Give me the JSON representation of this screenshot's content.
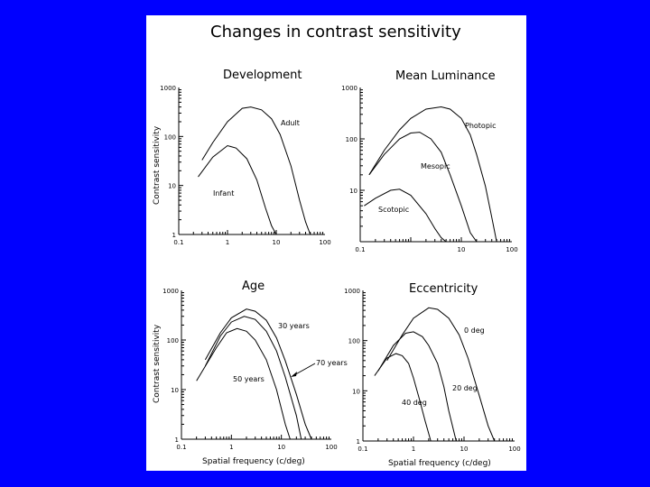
{
  "title": "Changes in contrast sensitivity",
  "chart_data": [
    {
      "type": "line",
      "title": "Development",
      "xscale": "log",
      "yscale": "log",
      "xlim": [
        0.1,
        100
      ],
      "ylim": [
        1,
        1000
      ],
      "xticklabels": [
        "0.1",
        "1",
        "10",
        "100"
      ],
      "yticklabels": [
        "1000",
        "100",
        "10",
        "1"
      ],
      "xlabel": "",
      "ylabel": "Contrast sensitivity",
      "series": [
        {
          "name": "Adult",
          "x": [
            0.3,
            0.5,
            1,
            2,
            3,
            5,
            8,
            12,
            20,
            30,
            40,
            50
          ],
          "y": [
            33,
            75,
            200,
            375,
            400,
            350,
            230,
            110,
            25,
            5,
            1.8,
            1
          ]
        },
        {
          "name": "Infant",
          "x": [
            0.25,
            0.5,
            1,
            1.5,
            2.5,
            4,
            6,
            8,
            10
          ],
          "y": [
            15,
            38,
            65,
            58,
            35,
            13,
            3.5,
            1.5,
            1
          ]
        }
      ]
    },
    {
      "type": "line",
      "title": "Mean Luminance",
      "xscale": "log",
      "yscale": "log",
      "xlim": [
        0.1,
        100
      ],
      "ylim": [
        1,
        1000
      ],
      "xticklabels": [
        "0.1",
        "10",
        "100"
      ],
      "yticklabels": [
        "1000",
        "100",
        "10"
      ],
      "xlabel": "",
      "ylabel": "",
      "series": [
        {
          "name": "Photopic",
          "x": [
            0.15,
            0.3,
            0.6,
            1,
            2,
            4,
            6,
            10,
            15,
            20,
            30,
            40,
            50
          ],
          "y": [
            20,
            60,
            150,
            250,
            380,
            420,
            380,
            250,
            120,
            50,
            12,
            3,
            1
          ]
        },
        {
          "name": "Mesopic",
          "x": [
            0.15,
            0.3,
            0.6,
            1,
            1.5,
            2.5,
            4,
            6,
            10,
            15,
            20
          ],
          "y": [
            20,
            50,
            100,
            130,
            135,
            100,
            55,
            20,
            5,
            1.5,
            1
          ]
        },
        {
          "name": "Scotopic",
          "x": [
            0.12,
            0.2,
            0.4,
            0.6,
            1,
            2,
            3,
            4,
            5
          ],
          "y": [
            5,
            7,
            10,
            10.5,
            8,
            3.5,
            1.8,
            1.2,
            1
          ]
        }
      ]
    },
    {
      "type": "line",
      "title": "Age",
      "xscale": "log",
      "yscale": "log",
      "xlim": [
        0.1,
        100
      ],
      "ylim": [
        1,
        1000
      ],
      "xticklabels": [
        "0.1",
        "1",
        "10",
        "100"
      ],
      "yticklabels": [
        "1000",
        "100",
        "10",
        "1"
      ],
      "xlabel": "Spatial frequency (c/deg)",
      "ylabel": "Contrast sensitivity",
      "series": [
        {
          "name": "30 years",
          "x": [
            0.3,
            0.6,
            1,
            2,
            3,
            5,
            8,
            12,
            20,
            30,
            40
          ],
          "y": [
            40,
            140,
            280,
            420,
            380,
            250,
            110,
            38,
            8,
            2,
            1
          ]
        },
        {
          "name": "50 years",
          "x": [
            0.3,
            0.6,
            1,
            1.8,
            3,
            5,
            8,
            12,
            20,
            25
          ],
          "y": [
            30,
            120,
            230,
            300,
            260,
            150,
            60,
            18,
            3,
            1
          ]
        },
        {
          "name": "70 years",
          "x": [
            0.2,
            0.5,
            0.8,
            1.3,
            2,
            3,
            5,
            8,
            12,
            15
          ],
          "y": [
            15,
            70,
            140,
            170,
            150,
            100,
            40,
            10,
            2,
            1
          ]
        }
      ],
      "annotations": [
        "30 years",
        "50 years",
        "70 years"
      ]
    },
    {
      "type": "line",
      "title": "Eccentricity",
      "xscale": "log",
      "yscale": "log",
      "xlim": [
        0.1,
        100
      ],
      "ylim": [
        1,
        1000
      ],
      "xticklabels": [
        "0.1",
        "1",
        "10",
        "100"
      ],
      "yticklabels": [
        "1000",
        "100",
        "10",
        "1"
      ],
      "xlabel": "Spatial frequency (c/deg)",
      "ylabel": "",
      "series": [
        {
          "name": "0 deg",
          "x": [
            0.3,
            0.6,
            1,
            2,
            3,
            5,
            8,
            12,
            20,
            30,
            40
          ],
          "y": [
            40,
            130,
            280,
            450,
            420,
            280,
            130,
            45,
            8,
            2,
            1
          ]
        },
        {
          "name": "20 deg",
          "x": [
            0.2,
            0.4,
            0.7,
            1,
            1.5,
            2,
            3,
            4,
            5,
            7
          ],
          "y": [
            25,
            80,
            140,
            150,
            120,
            80,
            35,
            12,
            4,
            1
          ]
        },
        {
          "name": "40 deg",
          "x": [
            0.17,
            0.3,
            0.45,
            0.6,
            0.8,
            1,
            1.3,
            1.7,
            2.2
          ],
          "y": [
            20,
            45,
            55,
            50,
            35,
            18,
            7,
            2.5,
            1
          ]
        }
      ],
      "annotations": [
        "0 deg",
        "20 deg",
        "40 deg"
      ]
    }
  ]
}
